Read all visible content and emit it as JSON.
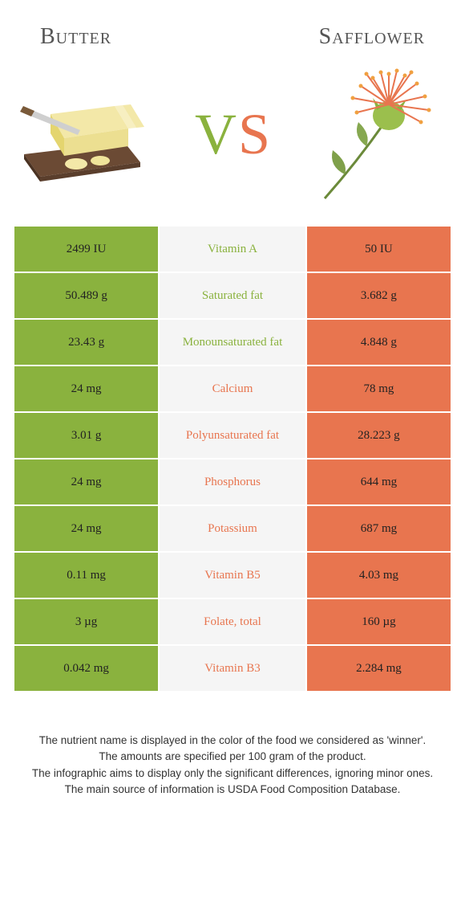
{
  "colors": {
    "left": "#8ab23e",
    "right": "#e8754f",
    "mid_bg": "#f5f5f5",
    "nutrient_left": "#8ab23e",
    "nutrient_right": "#e8754f"
  },
  "header": {
    "left_title": "Butter",
    "right_title": "Safflower"
  },
  "vs": {
    "v": "V",
    "s": "S"
  },
  "rows": [
    {
      "left": "2499 IU",
      "nutrient": "Vitamin A",
      "right": "50 IU",
      "winner": "left"
    },
    {
      "left": "50.489 g",
      "nutrient": "Saturated fat",
      "right": "3.682 g",
      "winner": "left"
    },
    {
      "left": "23.43 g",
      "nutrient": "Monounsaturated fat",
      "right": "4.848 g",
      "winner": "left"
    },
    {
      "left": "24 mg",
      "nutrient": "Calcium",
      "right": "78 mg",
      "winner": "right"
    },
    {
      "left": "3.01 g",
      "nutrient": "Polyunsaturated fat",
      "right": "28.223 g",
      "winner": "right"
    },
    {
      "left": "24 mg",
      "nutrient": "Phosphorus",
      "right": "644 mg",
      "winner": "right"
    },
    {
      "left": "24 mg",
      "nutrient": "Potassium",
      "right": "687 mg",
      "winner": "right"
    },
    {
      "left": "0.11 mg",
      "nutrient": "Vitamin B5",
      "right": "4.03 mg",
      "winner": "right"
    },
    {
      "left": "3 µg",
      "nutrient": "Folate, total",
      "right": "160 µg",
      "winner": "right"
    },
    {
      "left": "0.042 mg",
      "nutrient": "Vitamin B3",
      "right": "2.284 mg",
      "winner": "right"
    }
  ],
  "footer": {
    "line1": "The nutrient name is displayed in the color of the food we considered as 'winner'.",
    "line2": "The amounts are specified per 100 gram of the product.",
    "line3": "The infographic aims to display only the significant differences, ignoring minor ones.",
    "line4": "The main source of information is USDA Food Composition Database."
  }
}
